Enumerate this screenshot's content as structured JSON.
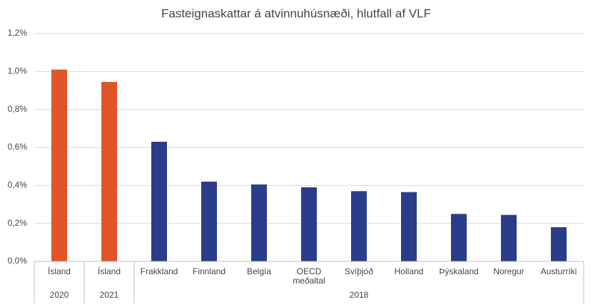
{
  "chart_data": {
    "type": "bar",
    "title": "Fasteignaskattar á atvinnuhúsnæði, hlutfall af VLF",
    "categories": [
      "Ísland",
      "Ísland",
      "Frakkland",
      "Finnland",
      "Belgía",
      "OECD meðaltal",
      "Svíþjóð",
      "Holland",
      "Þýskaland",
      "Noregur",
      "Austurríki"
    ],
    "values": [
      1.01,
      0.945,
      0.63,
      0.42,
      0.405,
      0.39,
      0.37,
      0.365,
      0.25,
      0.245,
      0.18
    ],
    "colors": [
      "#e0542a",
      "#e0542a",
      "#2b3d8a",
      "#2b3d8a",
      "#2b3d8a",
      "#2b3d8a",
      "#2b3d8a",
      "#2b3d8a",
      "#2b3d8a",
      "#2b3d8a",
      "#2b3d8a"
    ],
    "group_labels": [
      "2020",
      "2021",
      "2018"
    ],
    "group_sizes": [
      1,
      1,
      9
    ],
    "ylim": [
      0,
      1.2
    ],
    "yticks": [
      {
        "value": 0,
        "label": "0,0%"
      },
      {
        "value": 0.2,
        "label": "0,2%"
      },
      {
        "value": 0.4,
        "label": "0,4%"
      },
      {
        "value": 0.6,
        "label": "0,6%"
      },
      {
        "value": 0.8,
        "label": "0,8%"
      },
      {
        "value": 1.0,
        "label": "1,0%"
      },
      {
        "value": 1.2,
        "label": "1,2%"
      }
    ],
    "grid": true
  }
}
